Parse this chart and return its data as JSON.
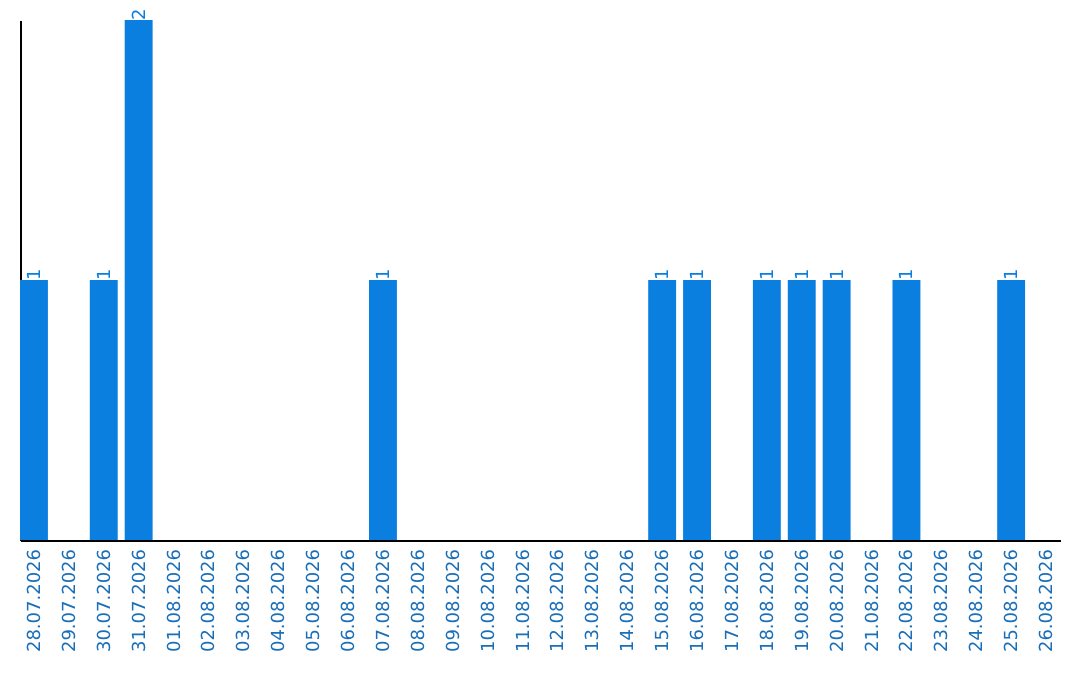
{
  "chart_data": {
    "type": "bar",
    "categories": [
      "28.07.2026",
      "29.07.2026",
      "30.07.2026",
      "31.07.2026",
      "01.08.2026",
      "02.08.2026",
      "03.08.2026",
      "04.08.2026",
      "05.08.2026",
      "06.08.2026",
      "07.08.2026",
      "08.08.2026",
      "09.08.2026",
      "10.08.2026",
      "11.08.2026",
      "12.08.2026",
      "13.08.2026",
      "14.08.2026",
      "15.08.2026",
      "16.08.2026",
      "17.08.2026",
      "18.08.2026",
      "19.08.2026",
      "20.08.2026",
      "21.08.2026",
      "22.08.2026",
      "23.08.2026",
      "24.08.2026",
      "25.08.2026",
      "26.08.2026"
    ],
    "values": [
      1,
      0,
      1,
      2,
      0,
      0,
      0,
      0,
      0,
      0,
      1,
      0,
      0,
      0,
      0,
      0,
      0,
      0,
      1,
      1,
      0,
      1,
      1,
      1,
      0,
      1,
      0,
      0,
      1,
      0
    ],
    "value_labels": [
      "1",
      null,
      "1",
      "2",
      null,
      null,
      null,
      null,
      null,
      null,
      "1",
      null,
      null,
      null,
      null,
      null,
      null,
      null,
      "1",
      "1",
      null,
      "1",
      "1",
      "1",
      null,
      "1",
      null,
      null,
      "1",
      null
    ],
    "color": "#0a7fe0",
    "tick_labels": "x",
    "grid": false
  }
}
